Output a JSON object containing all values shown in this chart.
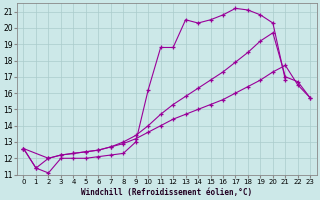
{
  "xlabel": "Windchill (Refroidissement éolien,°C)",
  "bg_color": "#cce8e8",
  "line_color": "#990099",
  "grid_color": "#aacccc",
  "xlim": [
    -0.5,
    23.5
  ],
  "ylim": [
    11,
    21.5
  ],
  "xticks": [
    0,
    1,
    2,
    3,
    4,
    5,
    6,
    7,
    8,
    9,
    10,
    11,
    12,
    13,
    14,
    15,
    16,
    17,
    18,
    19,
    20,
    21,
    22,
    23
  ],
  "yticks": [
    11,
    12,
    13,
    14,
    15,
    16,
    17,
    18,
    19,
    20,
    21
  ],
  "curves": [
    {
      "x": [
        0,
        1,
        2,
        3,
        4,
        5,
        6,
        7,
        8,
        9,
        10,
        11,
        12,
        13,
        14,
        15,
        16,
        17,
        18,
        19,
        20,
        21
      ],
      "y": [
        12.6,
        11.4,
        11.1,
        12.0,
        12.0,
        12.0,
        12.1,
        12.2,
        12.3,
        13.0,
        16.2,
        18.8,
        18.8,
        20.5,
        20.3,
        20.5,
        20.8,
        21.2,
        21.1,
        20.8,
        20.3,
        16.8
      ]
    },
    {
      "x": [
        0,
        1,
        2,
        3,
        4,
        5,
        6,
        7,
        8,
        9,
        10,
        11,
        12,
        13,
        14,
        15,
        16,
        17,
        18,
        19,
        20,
        21,
        22,
        23
      ],
      "y": [
        12.6,
        11.4,
        12.0,
        12.2,
        12.3,
        12.4,
        12.5,
        12.7,
        13.0,
        13.4,
        14.0,
        14.7,
        15.3,
        15.8,
        16.3,
        16.8,
        17.3,
        17.9,
        18.5,
        19.2,
        19.7,
        17.0,
        16.7,
        15.7
      ]
    },
    {
      "x": [
        0,
        2,
        3,
        4,
        5,
        6,
        7,
        8,
        9,
        10,
        11,
        12,
        13,
        14,
        15,
        16,
        17,
        18,
        19,
        20,
        21,
        22,
        23
      ],
      "y": [
        12.6,
        12.0,
        12.2,
        12.3,
        12.4,
        12.5,
        12.7,
        12.9,
        13.2,
        13.6,
        14.0,
        14.4,
        14.7,
        15.0,
        15.3,
        15.6,
        16.0,
        16.4,
        16.8,
        17.3,
        17.7,
        16.5,
        15.7
      ]
    }
  ]
}
